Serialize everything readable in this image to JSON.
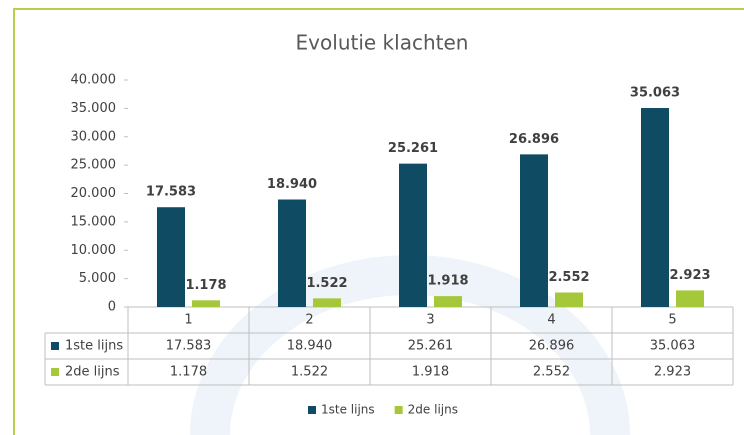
{
  "chart_data": {
    "type": "bar",
    "title": "Evolutie klachten",
    "categories": [
      "1",
      "2",
      "3",
      "4",
      "5"
    ],
    "series": [
      {
        "name": "1ste lijns",
        "color": "#0f4c63",
        "values": [
          17583,
          18940,
          25261,
          26896,
          35063
        ],
        "value_labels": [
          "17.583",
          "18.940",
          "25.261",
          "26.896",
          "35.063"
        ]
      },
      {
        "name": "2de lijns",
        "color": "#a5c83b",
        "values": [
          1178,
          1522,
          1918,
          2552,
          2923
        ],
        "value_labels": [
          "1.178",
          "1.522",
          "1.918",
          "2.552",
          "2.923"
        ]
      }
    ],
    "ylim": [
      0,
      40000
    ],
    "yticks": [
      0,
      {
        "value": 5000,
        "label": "5.000"
      },
      {
        "value": 10000,
        "label": "10.000"
      },
      {
        "value": 15000,
        "label": "15.000"
      },
      {
        "value": 20000,
        "label": "20.000"
      },
      {
        "value": 25000,
        "label": "25.000"
      },
      {
        "value": 30000,
        "label": "30.000"
      },
      {
        "value": 35000,
        "label": "35.000"
      },
      {
        "value": 40000,
        "label": "40.000"
      }
    ],
    "legend": "bottom"
  }
}
